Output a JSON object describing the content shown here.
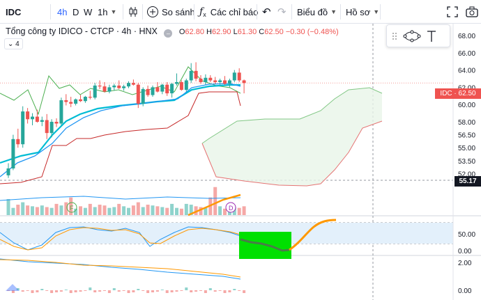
{
  "toolbar": {
    "symbol": "IDC",
    "intervals": [
      "4h",
      "D",
      "W",
      "1h"
    ],
    "compare_label": "So sánh",
    "indicators_label": "Các chỉ báo",
    "chart_type_label": "Biểu đồ",
    "profile_label": "Hồ sơ"
  },
  "legend": {
    "title": "Tổng công ty IDICO - CTCP · 4h · HNX",
    "open_label": "O",
    "open": "62.80",
    "high_label": "H",
    "high": "62.90",
    "low_label": "L",
    "low": "61.30",
    "close_label": "C",
    "close": "62.50",
    "change": "−0.30 (−0.48%)",
    "collapse_count": "4"
  },
  "price_tag": {
    "symbol": "IDC",
    "value": "62.50"
  },
  "crosshair_tag": "55.17",
  "markers": {
    "f": "F",
    "d": "D"
  },
  "chart_data": {
    "type": "line",
    "price_axis_ticks": [
      "68.00",
      "66.00",
      "64.00",
      "62.00",
      "60.00",
      "58.00",
      "56.50",
      "55.00",
      "53.50",
      "52.00"
    ],
    "oscillator_ticks": [
      "50.00",
      "0.00"
    ],
    "macd_ticks": [
      "2.00",
      "0.00"
    ],
    "last_price": 62.5,
    "crosshair_price": 55.17,
    "colors": {
      "up": "#26a69a",
      "down": "#ef5350",
      "ma_fast": "#2196f3",
      "ma_slow": "#00bcd4",
      "lagging": "#4caf50",
      "cloud": "#e8f5e9",
      "highlight_green": "#00e000",
      "orange": "#ff9800"
    },
    "candles": [
      [
        51.8,
        53.2,
        51.5,
        52.6
      ],
      [
        52.6,
        56.5,
        52.4,
        56.0
      ],
      [
        56.0,
        57.2,
        55.0,
        55.4
      ],
      [
        55.4,
        59.8,
        55.0,
        59.2
      ],
      [
        59.2,
        59.6,
        57.8,
        58.3
      ],
      [
        58.3,
        59.0,
        57.6,
        58.6
      ],
      [
        58.6,
        59.4,
        57.9,
        58.0
      ],
      [
        58.0,
        58.6,
        57.5,
        58.2
      ],
      [
        58.2,
        58.9,
        56.0,
        56.7
      ],
      [
        56.7,
        58.3,
        56.2,
        58.0
      ],
      [
        58.0,
        58.4,
        57.4,
        57.8
      ],
      [
        57.8,
        60.8,
        57.6,
        60.5
      ],
      [
        60.5,
        61.2,
        59.9,
        60.3
      ],
      [
        60.3,
        60.9,
        59.7,
        60.1
      ],
      [
        60.1,
        60.7,
        59.9,
        60.6
      ],
      [
        60.6,
        61.1,
        60.3,
        60.4
      ],
      [
        60.4,
        61.0,
        60.2,
        60.9
      ],
      [
        60.9,
        61.6,
        60.6,
        60.8
      ],
      [
        60.8,
        62.5,
        60.6,
        62.2
      ],
      [
        62.2,
        62.8,
        61.8,
        62.1
      ],
      [
        62.1,
        62.6,
        61.4,
        61.5
      ],
      [
        61.5,
        62.3,
        61.3,
        62.0
      ],
      [
        62.0,
        62.4,
        61.6,
        62.2
      ],
      [
        62.2,
        62.8,
        61.8,
        61.9
      ],
      [
        61.9,
        62.3,
        61.6,
        62.1
      ],
      [
        62.1,
        62.7,
        61.9,
        62.5
      ],
      [
        62.5,
        62.9,
        62.2,
        62.3
      ],
      [
        62.3,
        62.5,
        59.6,
        60.1
      ],
      [
        60.1,
        62.0,
        59.8,
        61.8
      ],
      [
        61.8,
        62.2,
        60.9,
        61.1
      ],
      [
        61.1,
        62.2,
        60.9,
        62.0
      ],
      [
        62.0,
        62.6,
        61.4,
        61.5
      ],
      [
        61.5,
        62.4,
        61.2,
        62.3
      ],
      [
        62.3,
        62.6,
        61.0,
        61.3
      ],
      [
        61.3,
        62.5,
        60.8,
        62.4
      ],
      [
        62.4,
        63.6,
        62.2,
        62.6
      ],
      [
        62.6,
        62.8,
        61.6,
        61.7
      ],
      [
        61.7,
        63.0,
        61.5,
        62.8
      ],
      [
        62.8,
        64.8,
        62.5,
        63.9
      ],
      [
        63.9,
        64.9,
        62.7,
        63.0
      ],
      [
        63.0,
        63.4,
        62.4,
        62.6
      ],
      [
        62.6,
        63.5,
        62.3,
        63.1
      ],
      [
        63.1,
        63.4,
        62.6,
        62.8
      ],
      [
        62.8,
        63.2,
        62.4,
        62.6
      ],
      [
        62.6,
        63.0,
        62.3,
        62.8
      ],
      [
        62.8,
        63.3,
        62.3,
        62.4
      ],
      [
        62.4,
        63.0,
        62.0,
        62.8
      ],
      [
        62.8,
        64.0,
        62.6,
        63.7
      ],
      [
        63.7,
        64.2,
        62.6,
        62.8
      ],
      [
        62.8,
        62.9,
        61.3,
        62.5
      ]
    ],
    "volumes": [
      20,
      9,
      13,
      16,
      12,
      11,
      10,
      12,
      10,
      9,
      14,
      12,
      16,
      22,
      8,
      11,
      9,
      14,
      10,
      13,
      12,
      9,
      10,
      14,
      11,
      9,
      12,
      16,
      10,
      13,
      12,
      11,
      10,
      9,
      14,
      9,
      8,
      14,
      13,
      11,
      10,
      9,
      22,
      35,
      11,
      8,
      12,
      10,
      9,
      11
    ]
  }
}
